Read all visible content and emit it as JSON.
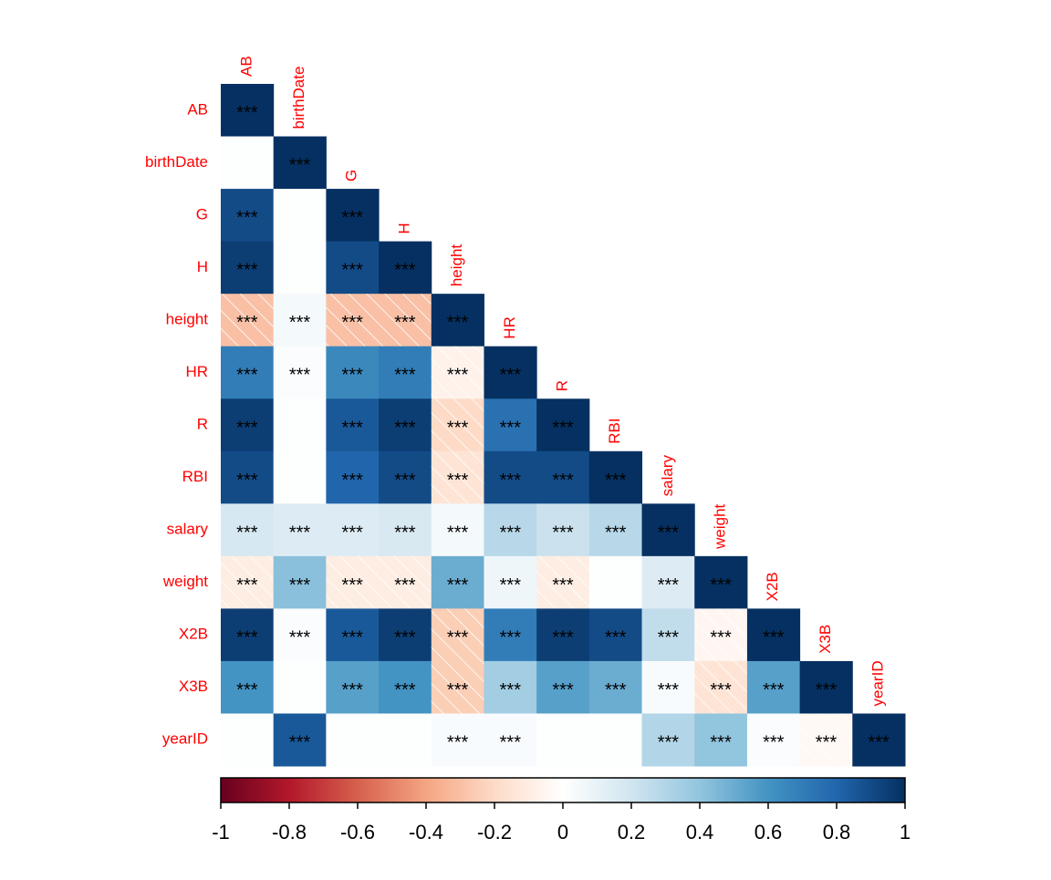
{
  "chart_data": {
    "type": "corrplot",
    "variables": [
      "AB",
      "birthDate",
      "G",
      "H",
      "height",
      "HR",
      "R",
      "RBI",
      "salary",
      "weight",
      "X2B",
      "X3B",
      "yearID"
    ],
    "matrix": [
      [
        1
      ],
      [
        0.01,
        1
      ],
      [
        0.9,
        0.01,
        1
      ],
      [
        0.95,
        0.01,
        0.9,
        1
      ],
      [
        -0.3,
        0.05,
        -0.3,
        -0.3,
        1
      ],
      [
        0.7,
        0.02,
        0.65,
        0.7,
        -0.07,
        1
      ],
      [
        0.95,
        0.01,
        0.85,
        0.95,
        -0.2,
        0.75,
        1
      ],
      [
        0.9,
        0.01,
        0.8,
        0.9,
        -0.15,
        0.9,
        0.9,
        1
      ],
      [
        0.18,
        0.15,
        0.15,
        0.17,
        0.05,
        0.28,
        0.22,
        0.28,
        1
      ],
      [
        -0.1,
        0.42,
        -0.1,
        -0.1,
        0.5,
        0.07,
        -0.1,
        0.01,
        0.15,
        1
      ],
      [
        0.95,
        0.02,
        0.85,
        0.95,
        -0.25,
        0.7,
        0.95,
        0.9,
        0.25,
        -0.05,
        1
      ],
      [
        0.6,
        0.01,
        0.55,
        0.6,
        -0.25,
        0.35,
        0.55,
        0.5,
        0.03,
        -0.15,
        0.55,
        1
      ],
      [
        0.01,
        0.85,
        0.01,
        0.01,
        0.03,
        0.03,
        0.01,
        0.01,
        0.3,
        0.4,
        0.02,
        -0.04,
        1
      ]
    ],
    "significance": [
      [
        "***"
      ],
      [
        null,
        "***"
      ],
      [
        "***",
        null,
        "***"
      ],
      [
        "***",
        null,
        "***",
        "***"
      ],
      [
        "***",
        "***",
        "***",
        "***",
        "***"
      ],
      [
        "***",
        "***",
        "***",
        "***",
        "***",
        "***"
      ],
      [
        "***",
        null,
        "***",
        "***",
        "***",
        "***",
        "***"
      ],
      [
        "***",
        null,
        "***",
        "***",
        "***",
        "***",
        "***",
        "***"
      ],
      [
        "***",
        "***",
        "***",
        "***",
        "***",
        "***",
        "***",
        "***",
        "***"
      ],
      [
        "***",
        "***",
        "***",
        "***",
        "***",
        "***",
        "***",
        null,
        "***",
        "***"
      ],
      [
        "***",
        "***",
        "***",
        "***",
        "***",
        "***",
        "***",
        "***",
        "***",
        "***",
        "***"
      ],
      [
        "***",
        null,
        "***",
        "***",
        "***",
        "***",
        "***",
        "***",
        "***",
        "***",
        "***",
        "***"
      ],
      [
        null,
        "***",
        null,
        null,
        "***",
        "***",
        null,
        null,
        "***",
        "***",
        "***",
        "***",
        "***"
      ]
    ],
    "colorscale": [
      "#67001F",
      "#B2182B",
      "#D6604D",
      "#F4A582",
      "#FDDBC7",
      "#FFFFFF",
      "#D1E5F0",
      "#92C5DE",
      "#4393C3",
      "#2166AC",
      "#053061"
    ],
    "clim": [
      -1,
      1
    ],
    "colorbar_ticks": [
      -1,
      -0.8,
      -0.6,
      -0.4,
      -0.2,
      0,
      0.2,
      0.4,
      0.6,
      0.8,
      1
    ],
    "label_color": "#FF0000"
  }
}
